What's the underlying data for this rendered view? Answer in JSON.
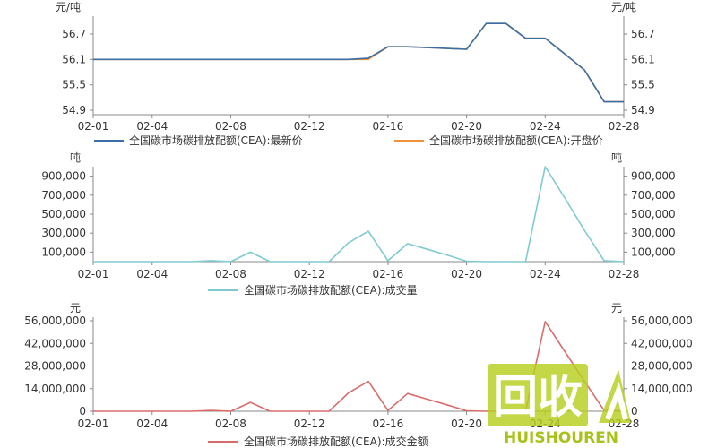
{
  "chart_data": [
    {
      "type": "line",
      "yunit": "元/吨",
      "ylim": [
        54.9,
        56.7
      ],
      "yticks": [
        "56.7",
        "56.1",
        "55.5",
        "54.9"
      ],
      "ytick_values": [
        56.7,
        56.1,
        55.5,
        54.9
      ],
      "x": [
        "02-01",
        "02-02",
        "02-03",
        "02-04",
        "02-05",
        "02-06",
        "02-07",
        "02-08",
        "02-09",
        "02-10",
        "02-11",
        "02-12",
        "02-13",
        "02-14",
        "02-15",
        "02-16",
        "02-17",
        "02-18",
        "02-19",
        "02-20",
        "02-21",
        "02-22",
        "02-23",
        "02-24",
        "02-25",
        "02-26",
        "02-27",
        "02-28"
      ],
      "xtick_labels": [
        "02-01",
        "02-04",
        "02-08",
        "02-12",
        "02-16",
        "02-20",
        "02-24",
        "02-28"
      ],
      "series": [
        {
          "name": "全国碳市场碳排放配额(CEA):最新价",
          "color": "#3a6ea5",
          "values": [
            56.1,
            56.1,
            56.1,
            56.1,
            56.1,
            56.1,
            56.1,
            56.1,
            56.1,
            56.1,
            56.1,
            56.1,
            56.1,
            56.1,
            56.13,
            56.4,
            56.4,
            56.38,
            56.36,
            56.34,
            56.95,
            56.95,
            56.6,
            56.6,
            56.23,
            55.85,
            55.1,
            55.1
          ]
        },
        {
          "name": "全国碳市场碳排放配额(CEA):开盘价",
          "color": "#f0923a",
          "values": [
            56.1,
            56.1,
            56.1,
            56.1,
            56.1,
            56.1,
            56.1,
            56.1,
            56.1,
            56.1,
            56.1,
            56.1,
            56.1,
            56.1,
            56.1,
            56.4,
            56.4,
            56.38,
            56.36,
            56.34,
            56.95,
            56.95,
            56.6,
            56.6,
            56.23,
            55.85,
            55.1,
            55.1
          ]
        }
      ]
    },
    {
      "type": "line",
      "yunit": "吨",
      "ylim": [
        0,
        1000000
      ],
      "yticks": [
        "900,000",
        "700,000",
        "500,000",
        "300,000",
        "100,000"
      ],
      "ytick_values": [
        900000,
        700000,
        500000,
        300000,
        100000
      ],
      "x": [
        "02-01",
        "02-02",
        "02-03",
        "02-04",
        "02-05",
        "02-06",
        "02-07",
        "02-08",
        "02-09",
        "02-10",
        "02-11",
        "02-12",
        "02-13",
        "02-14",
        "02-15",
        "02-16",
        "02-17",
        "02-18",
        "02-19",
        "02-20",
        "02-21",
        "02-22",
        "02-23",
        "02-24",
        "02-25",
        "02-26",
        "02-27",
        "02-28"
      ],
      "xtick_labels": [
        "02-01",
        "02-04",
        "02-08",
        "02-12",
        "02-16",
        "02-20",
        "02-24",
        "02-28"
      ],
      "series": [
        {
          "name": "全国碳市场碳排放配额(CEA):成交量",
          "color": "#7fcad0",
          "values": [
            0,
            0,
            0,
            0,
            0,
            0,
            10000,
            0,
            100000,
            0,
            0,
            0,
            0,
            200000,
            320000,
            10000,
            190000,
            130000,
            70000,
            5000,
            0,
            0,
            0,
            1000000,
            670000,
            330000,
            10000,
            0
          ]
        }
      ]
    },
    {
      "type": "line",
      "yunit": "元",
      "ylim": [
        0,
        56000000
      ],
      "yticks": [
        "56,000,000",
        "42,000,000",
        "28,000,000",
        "14,000,000",
        "0"
      ],
      "ytick_values": [
        56000000,
        42000000,
        28000000,
        14000000,
        0
      ],
      "x": [
        "02-01",
        "02-02",
        "02-03",
        "02-04",
        "02-05",
        "02-06",
        "02-07",
        "02-08",
        "02-09",
        "02-10",
        "02-11",
        "02-12",
        "02-13",
        "02-14",
        "02-15",
        "02-16",
        "02-17",
        "02-18",
        "02-19",
        "02-20",
        "02-21",
        "02-22",
        "02-23",
        "02-24",
        "02-25",
        "02-26",
        "02-27",
        "02-28"
      ],
      "xtick_labels": [
        "02-01",
        "02-04",
        "02-08",
        "02-12",
        "02-16",
        "02-20",
        "02-24",
        "02-28"
      ],
      "series": [
        {
          "name": "全国碳市场碳排放配额(CEA):成交金额",
          "color": "#d96b6b",
          "values": [
            0,
            0,
            0,
            0,
            0,
            0,
            500000,
            0,
            5500000,
            0,
            0,
            0,
            0,
            11500000,
            18500000,
            500000,
            11000000,
            7500000,
            4000000,
            300000,
            0,
            0,
            0,
            55500000,
            37000000,
            18500000,
            500000,
            0
          ]
        }
      ]
    }
  ],
  "watermark": {
    "logo_text": "回收",
    "brand_text": "HUISHOUREN"
  }
}
